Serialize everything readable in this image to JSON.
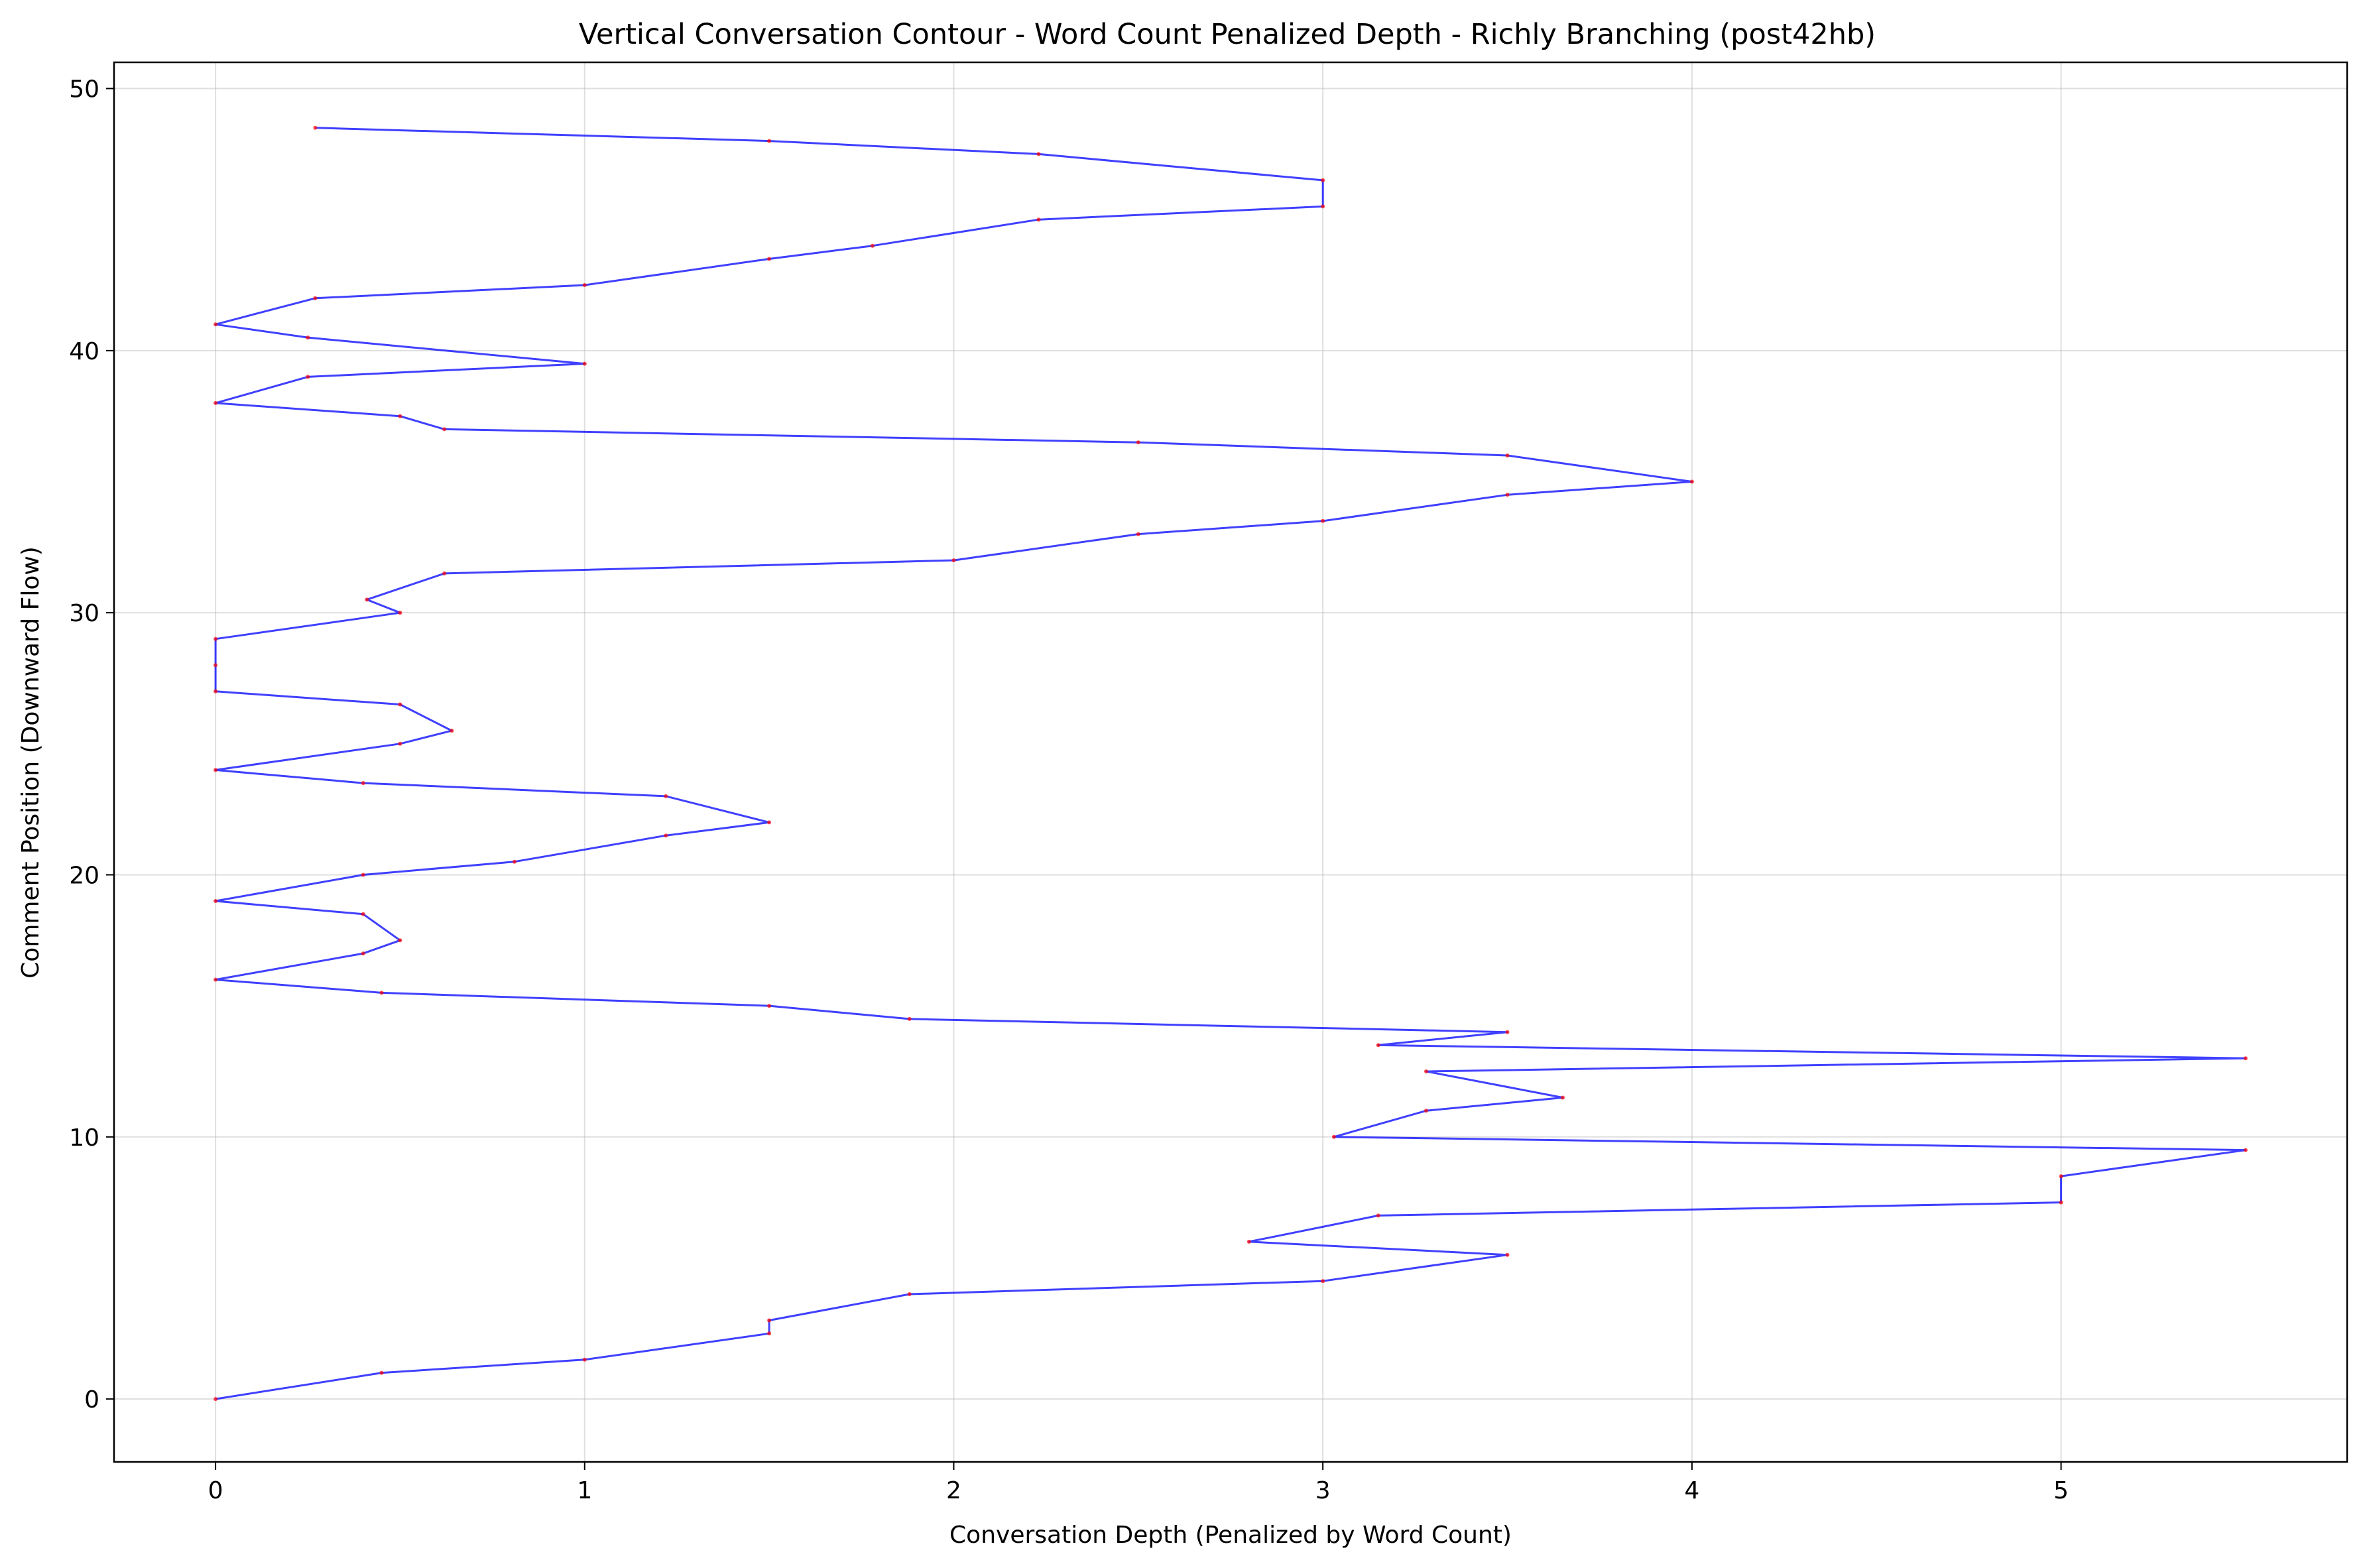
{
  "chart_data": {
    "type": "line",
    "title": "Vertical Conversation Contour - Word Count Penalized Depth - Richly Branching (post42hb)",
    "xlabel": "Conversation Depth (Penalized by Word Count)",
    "ylabel": "Comment Position (Downward Flow)",
    "xlim": [
      -0.275,
      5.775
    ],
    "ylim": [
      -2.4,
      51
    ],
    "xticks": [
      0,
      1,
      2,
      3,
      4,
      5
    ],
    "yticks": [
      0,
      10,
      20,
      30,
      40,
      50
    ],
    "grid": true,
    "colors": {
      "line": "#0000ff",
      "points": "#ff0000"
    },
    "series": [
      {
        "x": [
          0,
          0.45,
          1.0,
          1.5,
          1.5,
          1.88,
          3.0,
          3.5,
          2.8,
          3.15,
          5.0,
          5.0,
          5.5,
          3.03,
          3.28,
          3.65,
          3.28,
          5.5,
          3.15,
          3.5,
          1.88,
          1.5,
          0.45,
          0,
          0.4,
          0.5,
          0.4,
          0,
          0.4,
          0.81,
          1.22,
          1.5,
          1.22,
          0.4,
          0,
          0.5,
          0.64,
          0.5,
          0,
          0,
          0,
          0.5,
          0.41,
          0.62,
          2.0,
          2.5,
          3.0,
          3.5,
          4.0,
          3.5,
          2.5,
          0.62,
          0.5,
          0,
          0.25,
          1.0,
          0.25,
          0,
          0.27,
          1.0,
          1.5,
          1.78,
          2.23,
          3.0,
          3.0,
          2.23,
          1.5,
          0.27
        ],
        "y": [
          0,
          1,
          1.5,
          2.5,
          3,
          4,
          4.5,
          5.5,
          6,
          7,
          7.5,
          8.5,
          9.5,
          10,
          11,
          11.5,
          12.5,
          13,
          13.5,
          14,
          14.5,
          15,
          15.5,
          16,
          17,
          17.5,
          18.5,
          19,
          20,
          20.5,
          21.5,
          22,
          23,
          23.5,
          24,
          25,
          25.5,
          26.5,
          27,
          28,
          29,
          30,
          30.5,
          31.5,
          32,
          33,
          33.5,
          34.5,
          35,
          36,
          36.5,
          37,
          37.5,
          38,
          39,
          39.5,
          40.5,
          41,
          42,
          42.5,
          43.5,
          44,
          45,
          45.5,
          46.5,
          47.5,
          48,
          48.5
        ]
      }
    ]
  }
}
